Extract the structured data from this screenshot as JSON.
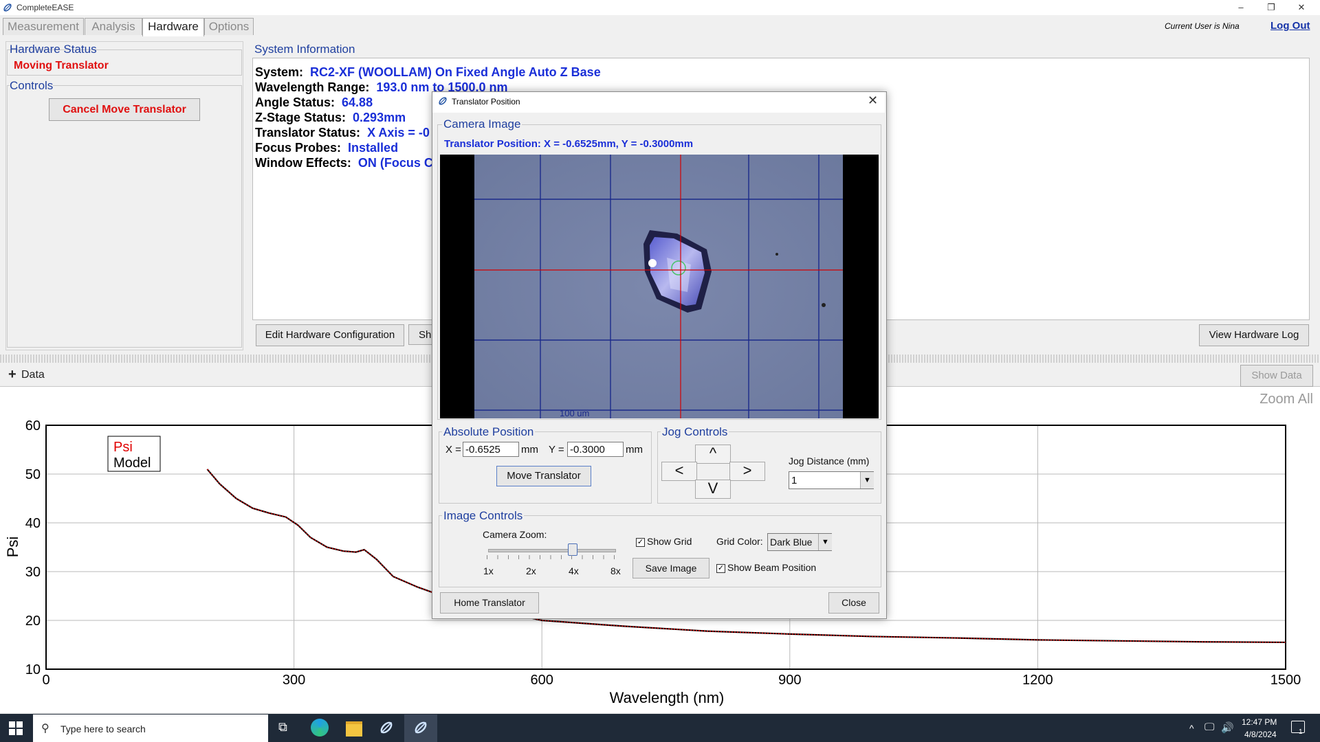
{
  "app": {
    "title": "CompleteEASE",
    "current_user": "Current User is Nina",
    "logout": "Log Out",
    "window_controls": [
      "–",
      "❐",
      "✕"
    ]
  },
  "tabs": [
    {
      "label": "Measurement",
      "active": false
    },
    {
      "label": "Analysis",
      "active": false
    },
    {
      "label": "Hardware",
      "active": true
    },
    {
      "label": "Options",
      "active": false
    }
  ],
  "hardware_status": {
    "title": "Hardware Status",
    "status": "Moving Translator"
  },
  "controls": {
    "title": "Controls",
    "cancel_button": "Cancel Move Translator"
  },
  "system_info": {
    "title": "System Information",
    "lines": [
      {
        "label": "System:",
        "value": "RC2-XF (WOOLLAM) On Fixed Angle Auto Z Base"
      },
      {
        "label": "Wavelength Range:",
        "value": "193.0 nm to 1500.0 nm"
      },
      {
        "label": "Angle Status:",
        "value": "64.88"
      },
      {
        "label": "Z-Stage Status:",
        "value": "0.293mm"
      },
      {
        "label": "Translator Status:",
        "value": "X Axis = -0"
      },
      {
        "label": "Focus Probes:",
        "value": "Installed"
      },
      {
        "label": "Window Effects:",
        "value": "ON (Focus C"
      }
    ],
    "edit_button": "Edit Hardware Configuration",
    "partial_button": "Sh",
    "view_log_button": "View Hardware Log"
  },
  "data_bar": {
    "label": "Data",
    "show_data_button": "Show Data",
    "zoom_all": "Zoom All"
  },
  "chart_data": {
    "type": "line",
    "ylabel": "Psi",
    "xlabel": "Wavelength (nm)",
    "xlim": [
      0,
      1500
    ],
    "ylim": [
      10,
      60
    ],
    "xticks": [
      0,
      300,
      600,
      900,
      1200,
      1500
    ],
    "yticks": [
      10,
      20,
      30,
      40,
      50,
      60
    ],
    "grid": true,
    "legend": {
      "placement": "top-left",
      "entries": [
        "Psi",
        "Model"
      ]
    },
    "series": [
      {
        "name": "Psi",
        "color": "#e00000",
        "x": [
          195,
          210,
          230,
          250,
          270,
          290,
          305,
          320,
          340,
          360,
          375,
          385,
          400,
          420,
          450,
          480,
          500,
          530,
          560,
          600,
          650,
          700,
          800,
          900,
          1000,
          1100,
          1200,
          1300,
          1400,
          1500
        ],
        "y": [
          51.0,
          48.0,
          45.0,
          43.0,
          42.0,
          41.2,
          39.5,
          37.0,
          35.0,
          34.2,
          34.0,
          34.5,
          32.5,
          29.0,
          26.8,
          25.0,
          24.0,
          22.5,
          21.5,
          20.0,
          19.4,
          18.8,
          17.8,
          17.2,
          16.7,
          16.4,
          16.0,
          15.8,
          15.6,
          15.5
        ]
      },
      {
        "name": "Model",
        "color": "#000000",
        "x": [
          195,
          210,
          230,
          250,
          270,
          290,
          305,
          320,
          340,
          360,
          375,
          385,
          400,
          420,
          450,
          480,
          500,
          530,
          560,
          600,
          650,
          700,
          800,
          900,
          1000,
          1100,
          1200,
          1300,
          1400,
          1500
        ],
        "y": [
          51.0,
          48.0,
          45.0,
          43.0,
          42.0,
          41.2,
          39.5,
          37.0,
          35.0,
          34.2,
          34.0,
          34.5,
          32.5,
          29.0,
          26.8,
          25.0,
          24.0,
          22.5,
          21.5,
          20.0,
          19.4,
          18.8,
          17.8,
          17.2,
          16.7,
          16.4,
          16.0,
          15.8,
          15.6,
          15.5
        ]
      }
    ]
  },
  "dialog": {
    "title": "Translator Position",
    "camera_title": "Camera Image",
    "translator_position": "Translator Position:  X = -0.6525mm, Y = -0.3000mm",
    "scale_label": "100 um",
    "absolute": {
      "title": "Absolute Position",
      "x_label": "X =",
      "x_value": "-0.6525",
      "y_label": "Y =",
      "y_value": "-0.3000",
      "unit": "mm",
      "move_button": "Move Translator"
    },
    "jog": {
      "title": "Jog Controls",
      "up": "^",
      "down": "V",
      "left": "<",
      "right": ">",
      "distance_label": "Jog Distance (mm)",
      "distance_value": "1"
    },
    "image_controls": {
      "title": "Image Controls",
      "zoom_label": "Camera Zoom:",
      "zoom_ticks": [
        "1x",
        "2x",
        "4x",
        "8x"
      ],
      "zoom_value": "4x",
      "show_grid": "Show Grid",
      "show_grid_checked": true,
      "grid_color_label": "Grid Color:",
      "grid_color_value": "Dark Blue",
      "save_image": "Save Image",
      "show_beam": "Show Beam Position",
      "show_beam_checked": true
    },
    "home_button": "Home Translator",
    "close_button": "Close"
  },
  "taskbar": {
    "search_placeholder": "Type here to search",
    "time": "12:47 PM",
    "date": "4/8/2024",
    "notification_count": "1"
  }
}
